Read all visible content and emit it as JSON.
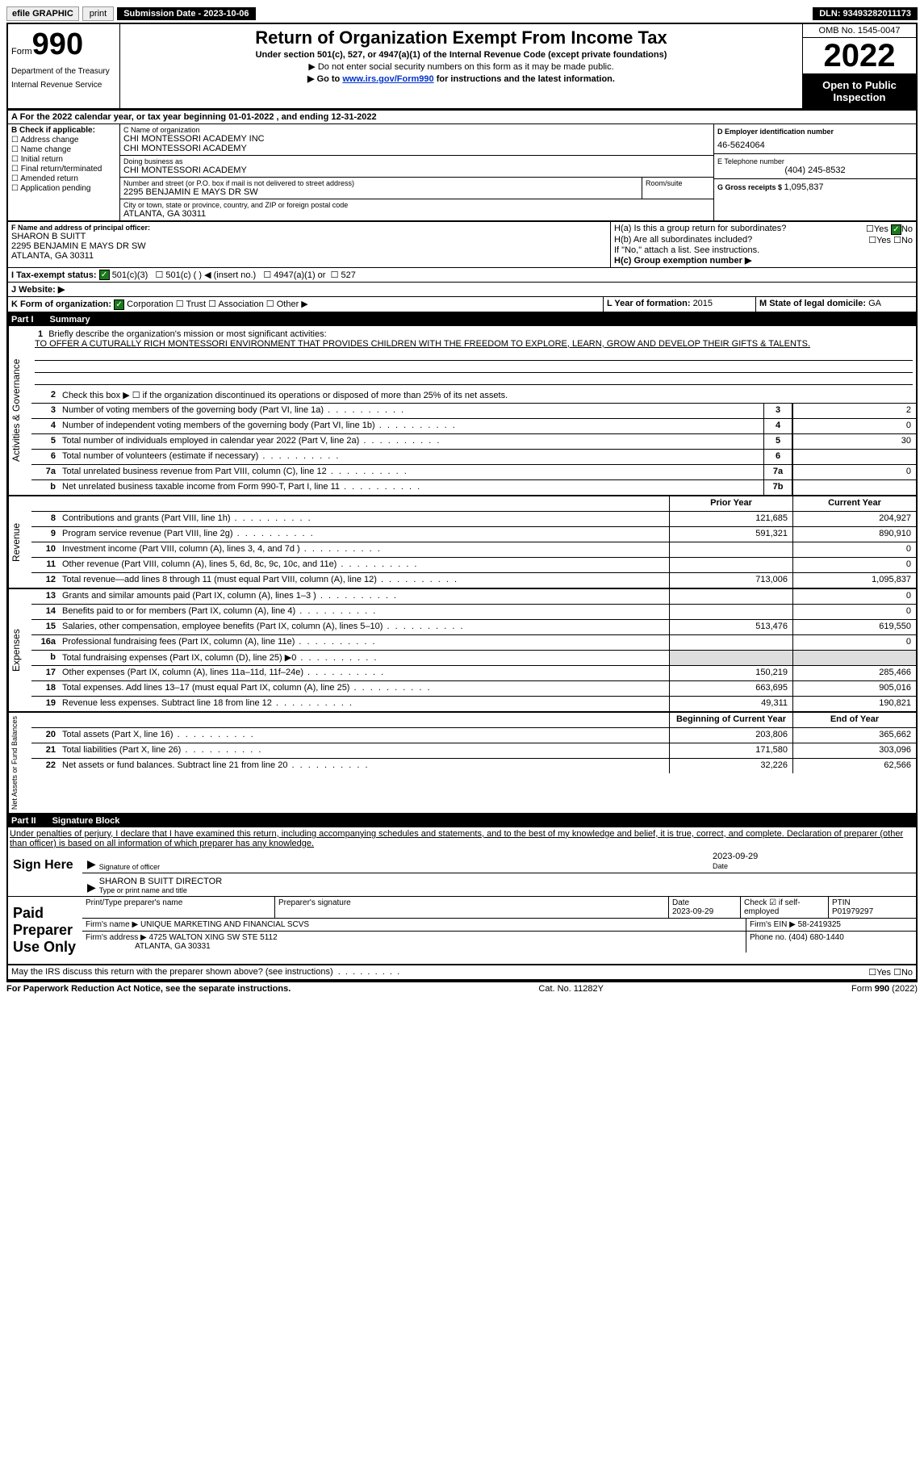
{
  "topbar": {
    "efile": "efile GRAPHIC",
    "print": "print",
    "subdate_label": "Submission Date - 2023-10-06",
    "dln": "DLN: 93493282011173"
  },
  "header": {
    "form_word": "Form",
    "form_no": "990",
    "dept": "Department of the Treasury",
    "service": "Internal Revenue Service",
    "title": "Return of Organization Exempt From Income Tax",
    "subtitle": "Under section 501(c), 527, or 4947(a)(1) of the Internal Revenue Code (except private foundations)",
    "note1": "▶ Do not enter social security numbers on this form as it may be made public.",
    "note2_pre": "▶ Go to ",
    "note2_link": "www.irs.gov/Form990",
    "note2_post": " for instructions and the latest information.",
    "omb": "OMB No. 1545-0047",
    "year": "2022",
    "inspection": "Open to Public Inspection"
  },
  "section_a": {
    "a_text": "A For the 2022 calendar year, or tax year beginning 01-01-2022   , and ending 12-31-2022",
    "b_label": "B Check if applicable:",
    "b_items": [
      "Address change",
      "Name change",
      "Initial return",
      "Final return/terminated",
      "Amended return",
      "Application pending"
    ],
    "c_label": "C Name of organization",
    "org1": "CHI MONTESSORI ACADEMY INC",
    "org2": "CHI MONTESSORI ACADEMY",
    "dba_label": "Doing business as",
    "dba": "CHI MONTESSORI ACADEMY",
    "street_label": "Number and street (or P.O. box if mail is not delivered to street address)",
    "street": "2295 BENJAMIN E MAYS DR SW",
    "room_label": "Room/suite",
    "city_label": "City or town, state or province, country, and ZIP or foreign postal code",
    "city": "ATLANTA, GA  30311",
    "d_label": "D Employer identification number",
    "ein": "46-5624064",
    "e_label": "E Telephone number",
    "phone": "(404) 245-8532",
    "g_label": "G Gross receipts $ ",
    "gross": "1,095,837",
    "f_label": "F Name and address of principal officer:",
    "officer_name": "SHARON B SUITT",
    "officer_addr1": "2295 BENJAMIN E MAYS DR SW",
    "officer_addr2": "ATLANTA, GA  30311",
    "ha_label": "H(a)  Is this a group return for subordinates?",
    "hb_label": "H(b)  Are all subordinates included?",
    "hb_note": "If \"No,\" attach a list. See instructions.",
    "hc_label": "H(c)  Group exemption number ▶",
    "yes": "Yes",
    "no": "No",
    "i_label": "I  Tax-exempt status:",
    "i_501c3": "501(c)(3)",
    "i_501c": "501(c) (  ) ◀ (insert no.)",
    "i_4947": "4947(a)(1) or",
    "i_527": "527",
    "j_label": "J  Website: ▶",
    "k_label": "K Form of organization:",
    "k_corp": "Corporation",
    "k_trust": "Trust",
    "k_assoc": "Association",
    "k_other": "Other ▶",
    "l_label": "L Year of formation: ",
    "l_val": "2015",
    "m_label": "M State of legal domicile: ",
    "m_val": "GA"
  },
  "part1": {
    "tab": "Part I",
    "title": "Summary",
    "line1_label": "Briefly describe the organization's mission or most significant activities:",
    "mission": "TO OFFER A CUTURALLY RICH MONTESSORI ENVIRONMENT THAT PROVIDES CHILDREN WITH THE FREEDOM TO EXPLORE, LEARN, GROW AND DEVELOP THEIR GIFTS & TALENTS.",
    "line2": "Check this box ▶ ☐  if the organization discontinued its operations or disposed of more than 25% of its net assets.",
    "vlabel_gov": "Activities & Governance",
    "vlabel_rev": "Revenue",
    "vlabel_exp": "Expenses",
    "vlabel_net": "Net Assets or Fund Balances",
    "col_prior": "Prior Year",
    "col_current": "Current Year",
    "col_begin": "Beginning of Current Year",
    "col_end": "End of Year",
    "lines_gov": [
      {
        "no": "3",
        "text": "Number of voting members of the governing body (Part VI, line 1a)",
        "cell": "3",
        "val": "2"
      },
      {
        "no": "4",
        "text": "Number of independent voting members of the governing body (Part VI, line 1b)",
        "cell": "4",
        "val": "0"
      },
      {
        "no": "5",
        "text": "Total number of individuals employed in calendar year 2022 (Part V, line 2a)",
        "cell": "5",
        "val": "30"
      },
      {
        "no": "6",
        "text": "Total number of volunteers (estimate if necessary)",
        "cell": "6",
        "val": ""
      },
      {
        "no": "7a",
        "text": "Total unrelated business revenue from Part VIII, column (C), line 12",
        "cell": "7a",
        "val": "0"
      },
      {
        "no": "b",
        "text": "Net unrelated business taxable income from Form 990-T, Part I, line 11",
        "cell": "7b",
        "val": ""
      }
    ],
    "lines_rev": [
      {
        "no": "8",
        "text": "Contributions and grants (Part VIII, line 1h)",
        "prior": "121,685",
        "curr": "204,927"
      },
      {
        "no": "9",
        "text": "Program service revenue (Part VIII, line 2g)",
        "prior": "591,321",
        "curr": "890,910"
      },
      {
        "no": "10",
        "text": "Investment income (Part VIII, column (A), lines 3, 4, and 7d )",
        "prior": "",
        "curr": "0"
      },
      {
        "no": "11",
        "text": "Other revenue (Part VIII, column (A), lines 5, 6d, 8c, 9c, 10c, and 11e)",
        "prior": "",
        "curr": "0"
      },
      {
        "no": "12",
        "text": "Total revenue—add lines 8 through 11 (must equal Part VIII, column (A), line 12)",
        "prior": "713,006",
        "curr": "1,095,837"
      }
    ],
    "lines_exp": [
      {
        "no": "13",
        "text": "Grants and similar amounts paid (Part IX, column (A), lines 1–3 )",
        "prior": "",
        "curr": "0"
      },
      {
        "no": "14",
        "text": "Benefits paid to or for members (Part IX, column (A), line 4)",
        "prior": "",
        "curr": "0"
      },
      {
        "no": "15",
        "text": "Salaries, other compensation, employee benefits (Part IX, column (A), lines 5–10)",
        "prior": "513,476",
        "curr": "619,550"
      },
      {
        "no": "16a",
        "text": "Professional fundraising fees (Part IX, column (A), line 11e)",
        "prior": "",
        "curr": "0"
      },
      {
        "no": "b",
        "text": "Total fundraising expenses (Part IX, column (D), line 25) ▶0",
        "prior": "shade",
        "curr": "shade"
      },
      {
        "no": "17",
        "text": "Other expenses (Part IX, column (A), lines 11a–11d, 11f–24e)",
        "prior": "150,219",
        "curr": "285,466"
      },
      {
        "no": "18",
        "text": "Total expenses. Add lines 13–17 (must equal Part IX, column (A), line 25)",
        "prior": "663,695",
        "curr": "905,016"
      },
      {
        "no": "19",
        "text": "Revenue less expenses. Subtract line 18 from line 12",
        "prior": "49,311",
        "curr": "190,821"
      }
    ],
    "lines_net": [
      {
        "no": "20",
        "text": "Total assets (Part X, line 16)",
        "prior": "203,806",
        "curr": "365,662"
      },
      {
        "no": "21",
        "text": "Total liabilities (Part X, line 26)",
        "prior": "171,580",
        "curr": "303,096"
      },
      {
        "no": "22",
        "text": "Net assets or fund balances. Subtract line 21 from line 20",
        "prior": "32,226",
        "curr": "62,566"
      }
    ]
  },
  "part2": {
    "tab": "Part II",
    "title": "Signature Block",
    "penalty": "Under penalties of perjury, I declare that I have examined this return, including accompanying schedules and statements, and to the best of my knowledge and belief, it is true, correct, and complete. Declaration of preparer (other than officer) is based on all information of which preparer has any knowledge.",
    "sign_here": "Sign Here",
    "sig_officer": "Signature of officer",
    "sig_date": "2023-09-29",
    "date_label": "Date",
    "officer_name": "SHARON B SUITT  DIRECTOR",
    "type_label": "Type or print name and title",
    "paid_prep": "Paid Preparer Use Only",
    "prep_name_label": "Print/Type preparer's name",
    "prep_sig_label": "Preparer's signature",
    "prep_date_label": "Date",
    "prep_date": "2023-09-29",
    "check_if": "Check ☑ if self-employed",
    "ptin_label": "PTIN",
    "ptin": "P01979297",
    "firm_name_label": "Firm's name    ▶",
    "firm_name": "UNIQUE MARKETING AND FINANCIAL SCVS",
    "firm_ein_label": "Firm's EIN ▶",
    "firm_ein": "58-2419325",
    "firm_addr_label": "Firm's address ▶",
    "firm_addr1": "4725 WALTON XING SW STE 5112",
    "firm_addr2": "ATLANTA, GA  30331",
    "phone_label": "Phone no. ",
    "phone": "(404) 680-1440",
    "may_irs": "May the IRS discuss this return with the preparer shown above? (see instructions)"
  },
  "footer": {
    "pra": "For Paperwork Reduction Act Notice, see the separate instructions.",
    "cat": "Cat. No. 11282Y",
    "form": "Form 990 (2022)"
  }
}
